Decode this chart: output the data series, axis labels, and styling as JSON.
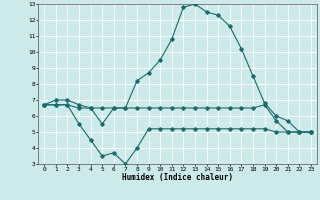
{
  "xlabel": "Humidex (Indice chaleur)",
  "bg_color": "#cceaea",
  "line_color": "#1a6b6b",
  "grid_color": "#ffffff",
  "xlim": [
    -0.5,
    23.5
  ],
  "ylim": [
    3,
    13
  ],
  "xticks": [
    0,
    1,
    2,
    3,
    4,
    5,
    6,
    7,
    8,
    9,
    10,
    11,
    12,
    13,
    14,
    15,
    16,
    17,
    18,
    19,
    20,
    21,
    22,
    23
  ],
  "yticks": [
    3,
    4,
    5,
    6,
    7,
    8,
    9,
    10,
    11,
    12,
    13
  ],
  "line1_x": [
    0,
    1,
    2,
    3,
    4,
    5,
    6,
    7,
    8,
    9,
    10,
    11,
    12,
    13,
    14,
    15,
    16,
    17,
    18,
    19,
    20,
    21,
    22,
    23
  ],
  "line1_y": [
    6.7,
    7.0,
    7.0,
    6.7,
    6.5,
    5.5,
    6.5,
    6.5,
    8.2,
    8.7,
    9.5,
    10.8,
    12.8,
    13.0,
    12.5,
    12.3,
    11.6,
    10.2,
    8.5,
    6.8,
    6.0,
    5.7,
    5.0,
    5.0
  ],
  "line2_x": [
    0,
    1,
    2,
    3,
    4,
    5,
    6,
    7,
    8,
    9,
    10,
    11,
    12,
    13,
    14,
    15,
    16,
    17,
    18,
    19,
    20,
    21,
    22,
    23
  ],
  "line2_y": [
    6.7,
    6.7,
    6.7,
    5.5,
    4.5,
    3.5,
    3.7,
    3.0,
    4.0,
    5.2,
    5.2,
    5.2,
    5.2,
    5.2,
    5.2,
    5.2,
    5.2,
    5.2,
    5.2,
    5.2,
    5.0,
    5.0,
    5.0,
    5.0
  ],
  "line3_x": [
    0,
    1,
    2,
    3,
    4,
    5,
    6,
    7,
    8,
    9,
    10,
    11,
    12,
    13,
    14,
    15,
    16,
    17,
    18,
    19,
    20,
    21,
    22,
    23
  ],
  "line3_y": [
    6.7,
    6.7,
    6.7,
    6.5,
    6.5,
    6.5,
    6.5,
    6.5,
    6.5,
    6.5,
    6.5,
    6.5,
    6.5,
    6.5,
    6.5,
    6.5,
    6.5,
    6.5,
    6.5,
    6.7,
    5.7,
    5.0,
    5.0,
    5.0
  ]
}
